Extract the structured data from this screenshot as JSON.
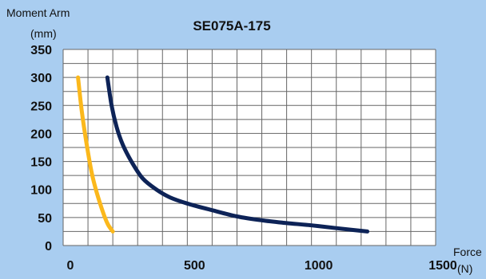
{
  "chart_data": {
    "type": "line",
    "title": "SE075A-175",
    "ylabel": [
      "Moment Arm",
      "(mm)"
    ],
    "xlabel": [
      "Force",
      "(N)"
    ],
    "xlim": [
      0,
      1500
    ],
    "ylim": [
      0,
      350
    ],
    "x_ticks": [
      0,
      500,
      1000,
      1500
    ],
    "y_ticks": [
      0,
      50,
      100,
      150,
      200,
      250,
      300,
      350
    ],
    "x_grid_step": 100,
    "y_grid_step": 25,
    "grid": true,
    "series": [
      {
        "color": "#fbb81c",
        "points": [
          [
            60,
            300
          ],
          [
            75,
            240
          ],
          [
            95,
            180
          ],
          [
            115,
            130
          ],
          [
            135,
            95
          ],
          [
            160,
            60
          ],
          [
            180,
            38
          ],
          [
            200,
            25
          ]
        ]
      },
      {
        "color": "#0d2357",
        "points": [
          [
            178,
            300
          ],
          [
            195,
            250
          ],
          [
            215,
            212
          ],
          [
            240,
            180
          ],
          [
            275,
            150
          ],
          [
            320,
            120
          ],
          [
            375,
            100
          ],
          [
            430,
            86
          ],
          [
            500,
            75
          ],
          [
            600,
            63
          ],
          [
            700,
            52
          ],
          [
            800,
            45
          ],
          [
            900,
            40
          ],
          [
            1000,
            36
          ],
          [
            1100,
            31
          ],
          [
            1225,
            25
          ]
        ]
      }
    ],
    "colors": {
      "background": "#a9cdf0",
      "plot_area": "#ffffff",
      "grid": "#666666"
    }
  }
}
